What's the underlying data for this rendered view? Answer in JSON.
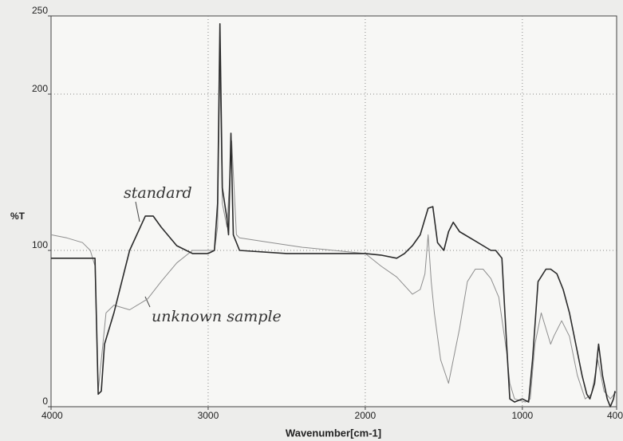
{
  "chart_data": {
    "type": "line",
    "xlabel": "Wavenumber[cm-1]",
    "ylabel": "%T",
    "xlim": [
      4000,
      400
    ],
    "ylim": [
      0,
      250
    ],
    "xticks": [
      4000,
      3000,
      2000,
      1000,
      400
    ],
    "yticks": [
      0,
      100,
      200,
      250
    ],
    "grid": true,
    "series": [
      {
        "name": "standard",
        "color": "#2b2b2b",
        "x": [
          4000,
          3750,
          3720,
          3700,
          3680,
          3660,
          3600,
          3500,
          3400,
          3350,
          3300,
          3200,
          3100,
          3000,
          2960,
          2940,
          2925,
          2910,
          2880,
          2870,
          2855,
          2840,
          2800,
          2500,
          2000,
          1900,
          1800,
          1750,
          1700,
          1650,
          1600,
          1570,
          1540,
          1500,
          1470,
          1440,
          1400,
          1300,
          1200,
          1170,
          1130,
          1100,
          1080,
          1050,
          1000,
          960,
          935,
          900,
          850,
          820,
          780,
          740,
          700,
          650,
          620,
          590,
          570,
          540,
          515,
          490,
          460,
          440,
          420,
          410
        ],
        "values": [
          95,
          95,
          95,
          8,
          10,
          40,
          60,
          100,
          122,
          122,
          115,
          103,
          98,
          98,
          100,
          130,
          245,
          140,
          120,
          110,
          175,
          110,
          100,
          98,
          98,
          97,
          95,
          98,
          103,
          110,
          127,
          128,
          105,
          100,
          112,
          118,
          112,
          106,
          100,
          100,
          95,
          40,
          5,
          3,
          5,
          3,
          30,
          80,
          88,
          88,
          85,
          75,
          60,
          35,
          20,
          8,
          5,
          15,
          40,
          20,
          5,
          0,
          5,
          10
        ]
      },
      {
        "name": "unknown sample",
        "color": "#8e8e8e",
        "x": [
          4000,
          3900,
          3800,
          3750,
          3720,
          3700,
          3680,
          3650,
          3600,
          3500,
          3450,
          3385,
          3300,
          3200,
          3100,
          3000,
          2960,
          2940,
          2925,
          2910,
          2880,
          2850,
          2820,
          2800,
          2600,
          2400,
          2200,
          2000,
          1900,
          1800,
          1700,
          1650,
          1620,
          1600,
          1580,
          1560,
          1520,
          1470,
          1400,
          1350,
          1300,
          1250,
          1200,
          1150,
          1100,
          1080,
          1050,
          980,
          950,
          920,
          880,
          850,
          820,
          800,
          750,
          700,
          650,
          600,
          560,
          520,
          480,
          440,
          400
        ],
        "values": [
          110,
          108,
          105,
          100,
          90,
          10,
          30,
          60,
          65,
          62,
          65,
          69,
          80,
          92,
          100,
          100,
          100,
          115,
          220,
          130,
          115,
          170,
          110,
          108,
          105,
          102,
          100,
          98,
          90,
          83,
          72,
          75,
          85,
          110,
          80,
          60,
          30,
          15,
          50,
          80,
          88,
          88,
          82,
          70,
          35,
          15,
          5,
          3,
          5,
          40,
          60,
          50,
          40,
          45,
          55,
          45,
          20,
          5,
          8,
          30,
          10,
          5,
          10
        ]
      }
    ]
  }
}
